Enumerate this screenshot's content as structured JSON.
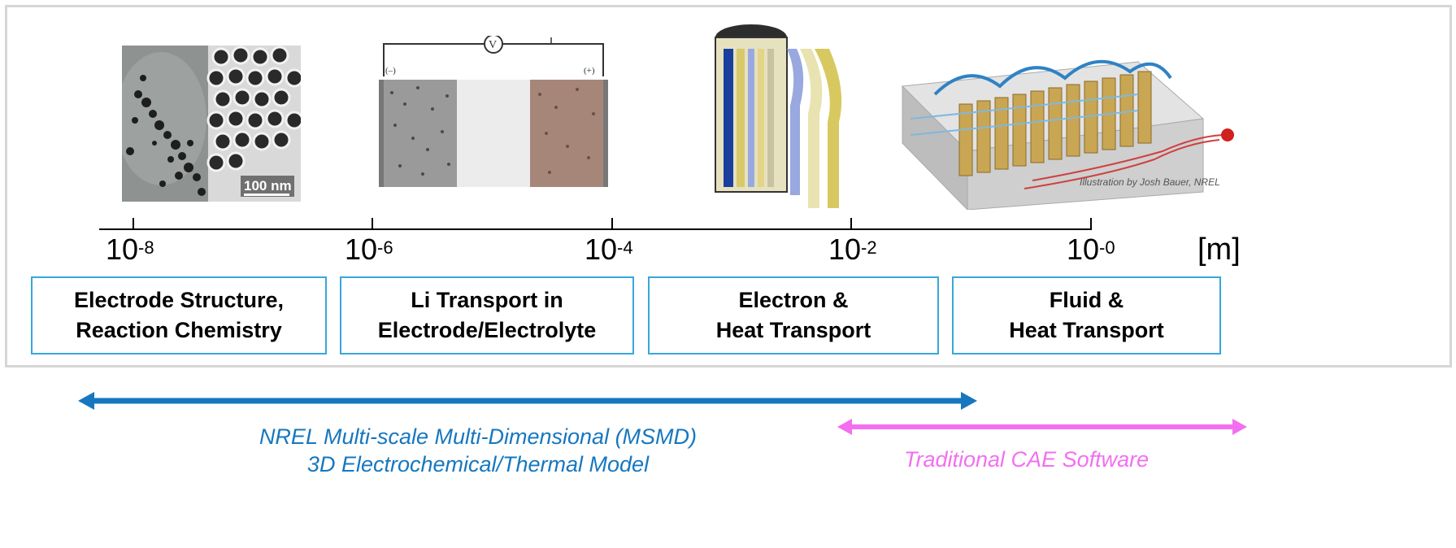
{
  "scale_axis": {
    "ticks": [
      {
        "base": "10",
        "exp": "-8"
      },
      {
        "base": "10",
        "exp": "-6"
      },
      {
        "base": "10",
        "exp": "-4"
      },
      {
        "base": "10",
        "exp": "-2"
      },
      {
        "base": "10",
        "exp": "-0"
      }
    ],
    "unit": "[m]"
  },
  "boxes": [
    {
      "line1": "Electrode Structure,",
      "line2": "Reaction Chemistry"
    },
    {
      "line1": "Li Transport in",
      "line2": "Electrode/Electrolyte"
    },
    {
      "line1": "Electron &",
      "line2": "Heat Transport"
    },
    {
      "line1": "Fluid &",
      "line2": "Heat Transport"
    }
  ],
  "images": {
    "micrograph_scale": "100 nm",
    "cell_minus": "(–)",
    "cell_plus": "(+)",
    "voltmeter": "V",
    "credit": "Illustration by Josh Bauer, NREL"
  },
  "ranges": {
    "msmd": {
      "line1": "NREL Multi-scale Multi-Dimensional (MSMD)",
      "line2": "3D Electrochemical/Thermal Model",
      "color": "#1677bf"
    },
    "cae": {
      "label": "Traditional CAE Software",
      "color": "#f36ff0"
    }
  }
}
